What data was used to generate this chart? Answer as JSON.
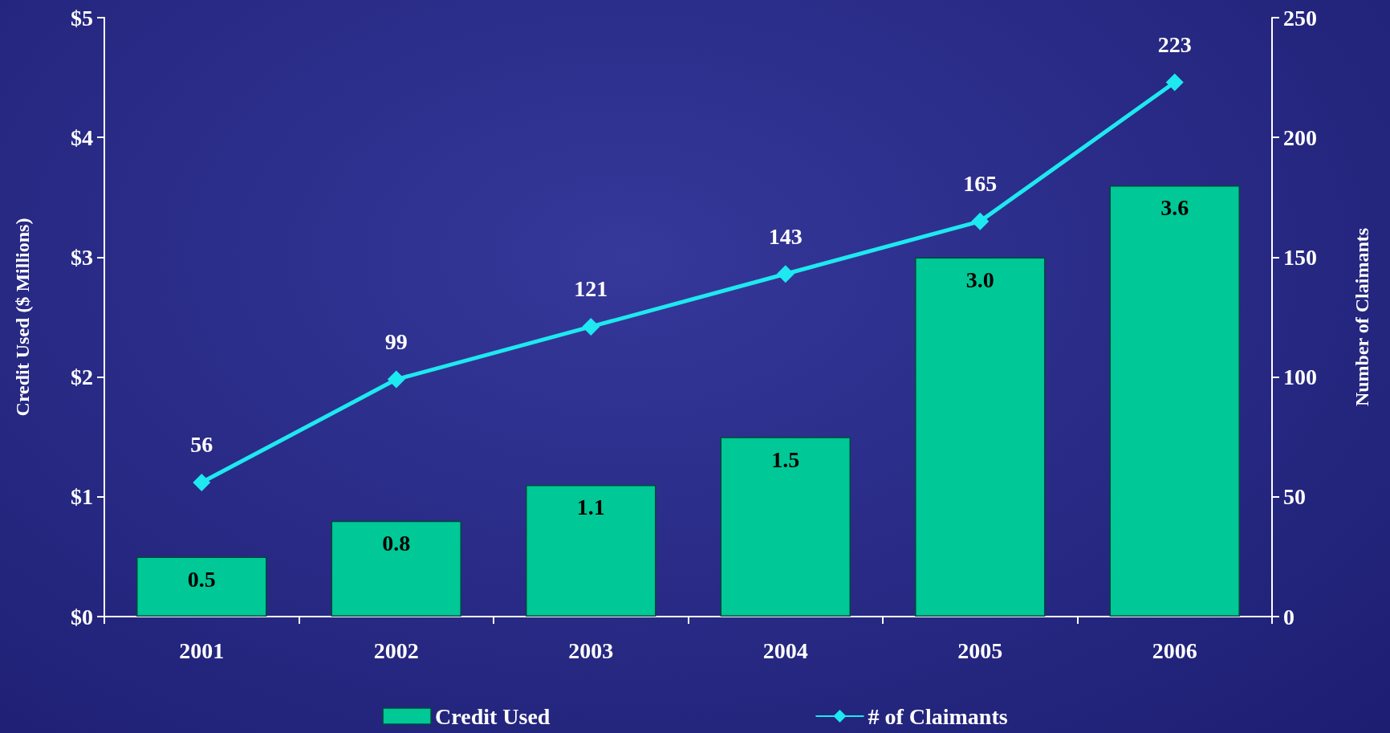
{
  "chart_data": {
    "type": "bar",
    "ylabel": "Credit Used ($ Millions)",
    "y2label": "Number of Claimants",
    "categories": [
      "2001",
      "2002",
      "2003",
      "2004",
      "2005",
      "2006"
    ],
    "series": [
      {
        "name": "Credit Used",
        "color": "#00c896",
        "values": [
          0.5,
          0.8,
          1.1,
          1.5,
          3.0,
          3.6
        ],
        "value_labels": [
          "0.5",
          "0.8",
          "1.1",
          "1.5",
          "3.0",
          "3.6"
        ]
      },
      {
        "name": "# of Claimants",
        "type": "line",
        "axis": "y2",
        "color": "#1ee8f0",
        "marker": "diamond",
        "values": [
          56,
          99,
          121,
          143,
          165,
          223
        ]
      }
    ],
    "ylim": [
      0,
      5
    ],
    "yticks": [
      {
        "value": 0,
        "label": "$0"
      },
      {
        "value": 1,
        "label": "$1"
      },
      {
        "value": 2,
        "label": "$2"
      },
      {
        "value": 3,
        "label": "$3"
      },
      {
        "value": 4,
        "label": "$4"
      },
      {
        "value": 5,
        "label": "$5"
      }
    ],
    "y2lim": [
      0,
      250
    ],
    "y2ticks": [
      0,
      50,
      100,
      150,
      200,
      250
    ],
    "data_labels": true,
    "grid": false,
    "legend": "bottom"
  }
}
